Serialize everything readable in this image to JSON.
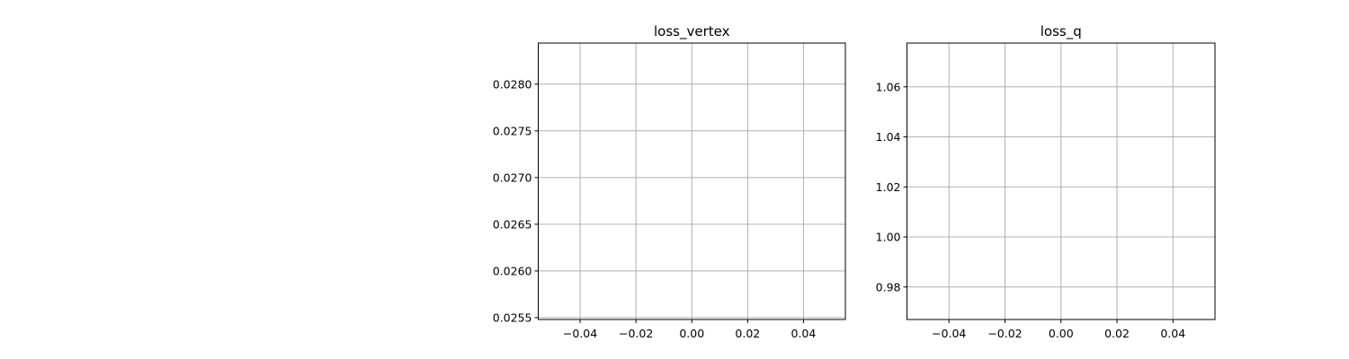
{
  "chart_data": [
    {
      "type": "line",
      "title": "loss_vertex",
      "xlabel": "",
      "ylabel": "",
      "grid": true,
      "xlim": [
        -0.055,
        0.055
      ],
      "ylim": [
        0.02548,
        0.02844
      ],
      "xticks": [
        -0.04,
        -0.02,
        0.0,
        0.02,
        0.04
      ],
      "xtick_labels": [
        "−0.04",
        "−0.02",
        "0.00",
        "0.02",
        "0.04"
      ],
      "yticks": [
        0.0255,
        0.026,
        0.0265,
        0.027,
        0.0275,
        0.028
      ],
      "ytick_labels": [
        "0.0255",
        "0.0260",
        "0.0265",
        "0.0270",
        "0.0275",
        "0.0280"
      ],
      "series": []
    },
    {
      "type": "line",
      "title": "loss_q",
      "xlabel": "",
      "ylabel": "",
      "grid": true,
      "xlim": [
        -0.055,
        0.055
      ],
      "ylim": [
        0.967,
        1.0775
      ],
      "xticks": [
        -0.04,
        -0.02,
        0.0,
        0.02,
        0.04
      ],
      "xtick_labels": [
        "−0.04",
        "−0.02",
        "0.00",
        "0.02",
        "0.04"
      ],
      "yticks": [
        0.98,
        1.0,
        1.02,
        1.04,
        1.06
      ],
      "ytick_labels": [
        "0.98",
        "1.00",
        "1.02",
        "1.04",
        "1.06"
      ],
      "series": []
    }
  ],
  "colors": {
    "grid": "#b0b0b0",
    "axes": "#000000",
    "background": "#ffffff"
  }
}
